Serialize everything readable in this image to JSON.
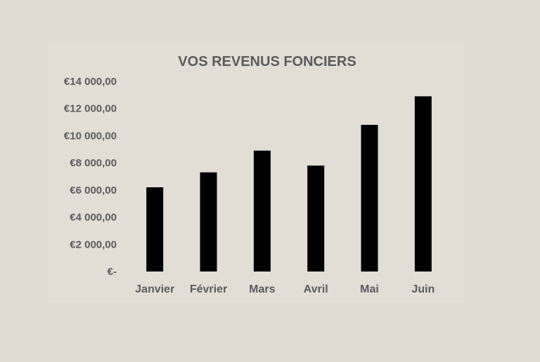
{
  "chart_data": {
    "type": "bar",
    "title": "VOS REVENUS FONCIERS",
    "xlabel": "",
    "ylabel": "",
    "categories": [
      "Janvier",
      "Février",
      "Mars",
      "Avril",
      "Mai",
      "Juin"
    ],
    "values": [
      6200,
      7300,
      8900,
      7800,
      10800,
      12900
    ],
    "ylim": [
      0,
      14000
    ],
    "y_ticks": [
      0,
      2000,
      4000,
      6000,
      8000,
      10000,
      12000,
      14000
    ],
    "y_tick_labels": [
      "€-",
      "€2 000,00",
      "€4 000,00",
      "€6 000,00",
      "€8 000,00",
      "€10 000,00",
      "€12 000,00",
      "€14 000,00"
    ],
    "grid": false,
    "legend": "none",
    "colors": {
      "bar": "#000000",
      "text": "#5b5b5b",
      "background": "#e0dbd1",
      "plot_area": "#e3ded5"
    }
  }
}
